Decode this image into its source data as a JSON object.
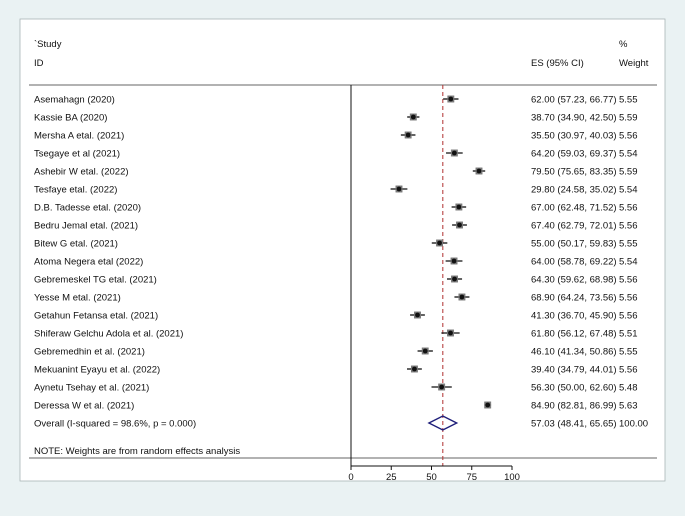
{
  "header": {
    "study_label": "`Study",
    "id_label": "ID",
    "es_label": "ES (95% CI)",
    "percent_label": "%",
    "weight_label": "Weight"
  },
  "note": "NOTE: Weights are from random effects analysis",
  "chart_data": {
    "type": "forest",
    "xlim": [
      0,
      100
    ],
    "x_ticks": [
      "0",
      "25",
      "50",
      "75",
      "100"
    ],
    "x_tick_values": [
      0,
      25,
      50,
      75,
      100
    ],
    "null_line": 0,
    "pooled_line": 57.03,
    "colors": {
      "pooled_line": "#b03030",
      "diamond": "#1f1f7a",
      "point": "#111111"
    },
    "studies": [
      {
        "label": "Asemahagn (2020)",
        "es": 62.0,
        "lo": 57.23,
        "hi": 66.77,
        "es_text": "62.00 (57.23, 66.77)",
        "weight": "5.55"
      },
      {
        "label": "Kassie BA (2020)",
        "es": 38.7,
        "lo": 34.9,
        "hi": 42.5,
        "es_text": "38.70 (34.90, 42.50)",
        "weight": "5.59"
      },
      {
        "label": "Mersha A etal. (2021)",
        "es": 35.5,
        "lo": 30.97,
        "hi": 40.03,
        "es_text": "35.50 (30.97, 40.03)",
        "weight": "5.56"
      },
      {
        "label": "Tsegaye et al (2021)",
        "es": 64.2,
        "lo": 59.03,
        "hi": 69.37,
        "es_text": "64.20 (59.03, 69.37)",
        "weight": "5.54"
      },
      {
        "label": "Ashebir W etal. (2022)",
        "es": 79.5,
        "lo": 75.65,
        "hi": 83.35,
        "es_text": "79.50 (75.65, 83.35)",
        "weight": "5.59"
      },
      {
        "label": "Tesfaye etal. (2022)",
        "es": 29.8,
        "lo": 24.58,
        "hi": 35.02,
        "es_text": "29.80 (24.58, 35.02)",
        "weight": "5.54"
      },
      {
        "label": "D.B. Tadesse etal. (2020)",
        "es": 67.0,
        "lo": 62.48,
        "hi": 71.52,
        "es_text": "67.00 (62.48, 71.52)",
        "weight": "5.56"
      },
      {
        "label": "Bedru Jemal etal. (2021)",
        "es": 67.4,
        "lo": 62.79,
        "hi": 72.01,
        "es_text": "67.40 (62.79, 72.01)",
        "weight": "5.56"
      },
      {
        "label": "Bitew G etal. (2021)",
        "es": 55.0,
        "lo": 50.17,
        "hi": 59.83,
        "es_text": "55.00 (50.17, 59.83)",
        "weight": "5.55"
      },
      {
        "label": "Atoma Negera etal (2022)",
        "es": 64.0,
        "lo": 58.78,
        "hi": 69.22,
        "es_text": "64.00 (58.78, 69.22)",
        "weight": "5.54"
      },
      {
        "label": "Gebremeskel TG etal. (2021)",
        "es": 64.3,
        "lo": 59.62,
        "hi": 68.98,
        "es_text": "64.30 (59.62, 68.98)",
        "weight": "5.56"
      },
      {
        "label": "Yesse M etal. (2021)",
        "es": 68.9,
        "lo": 64.24,
        "hi": 73.56,
        "es_text": "68.90 (64.24, 73.56)",
        "weight": "5.56"
      },
      {
        "label": "Getahun Fetansa etal. (2021)",
        "es": 41.3,
        "lo": 36.7,
        "hi": 45.9,
        "es_text": "41.30 (36.70, 45.90)",
        "weight": "5.56"
      },
      {
        "label": "Shiferaw Gelchu Adola et al. (2021)",
        "es": 61.8,
        "lo": 56.12,
        "hi": 67.48,
        "es_text": "61.80 (56.12, 67.48)",
        "weight": "5.51"
      },
      {
        "label": "Gebremedhin et al. (2021)",
        "es": 46.1,
        "lo": 41.34,
        "hi": 50.86,
        "es_text": "46.10 (41.34, 50.86)",
        "weight": "5.55"
      },
      {
        "label": "Mekuanint Eyayu et al. (2022)",
        "es": 39.4,
        "lo": 34.79,
        "hi": 44.01,
        "es_text": "39.40 (34.79, 44.01)",
        "weight": "5.56"
      },
      {
        "label": "Aynetu Tsehay et al. (2021)",
        "es": 56.3,
        "lo": 50.0,
        "hi": 62.6,
        "es_text": "56.30 (50.00, 62.60)",
        "weight": "5.48"
      },
      {
        "label": "Deressa W et al. (2021)",
        "es": 84.9,
        "lo": 82.81,
        "hi": 86.99,
        "es_text": "84.90 (82.81, 86.99)",
        "weight": "5.63"
      }
    ],
    "overall": {
      "label": "Overall  (I-squared = 98.6%, p = 0.000)",
      "es": 57.03,
      "lo": 48.41,
      "hi": 65.65,
      "es_text": "57.03 (48.41, 65.65)",
      "weight": "100.00"
    }
  }
}
